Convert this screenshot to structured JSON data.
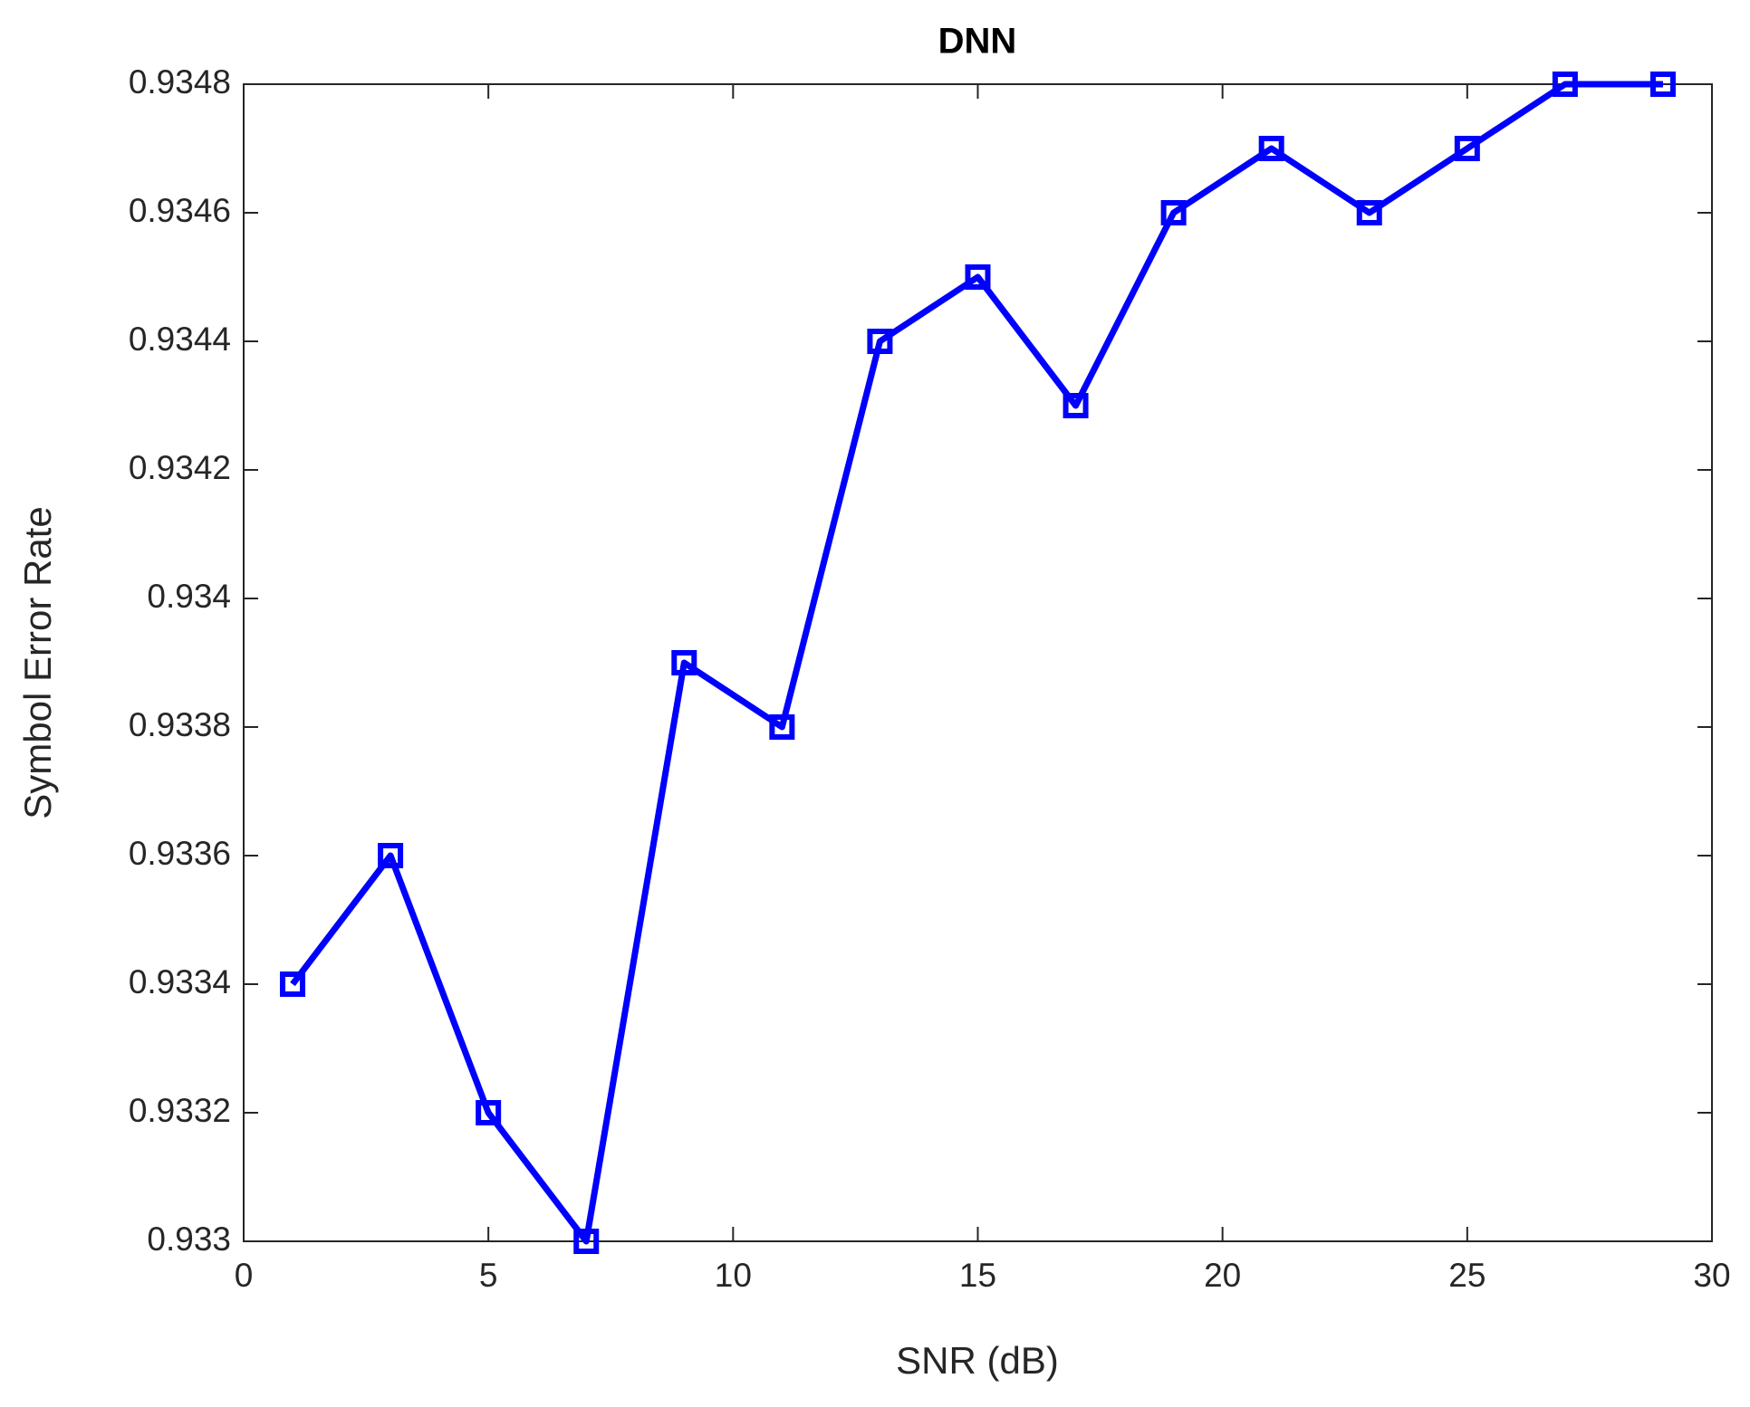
{
  "chart_data": {
    "type": "line",
    "title": "DNN",
    "x_label": "SNR (dB)",
    "y_label": "Symbol Error Rate",
    "x": [
      1,
      3,
      5,
      7,
      9,
      11,
      13,
      15,
      17,
      19,
      21,
      23,
      25,
      27,
      29
    ],
    "series": [
      {
        "name": "DNN",
        "color": "#0000ff",
        "values": [
          0.9334,
          0.9336,
          0.9332,
          0.933,
          0.9339,
          0.9338,
          0.9344,
          0.9345,
          0.9343,
          0.9346,
          0.9347,
          0.9346,
          0.9347,
          0.9348,
          0.9348
        ]
      }
    ],
    "xlim": [
      0,
      30
    ],
    "xticks": [
      0,
      5,
      10,
      15,
      20,
      25,
      30
    ],
    "ylim": [
      0.933,
      0.9348
    ],
    "yticks": [
      0.933,
      0.9332,
      0.9334,
      0.9336,
      0.9338,
      0.934,
      0.9342,
      0.9344,
      0.9346,
      0.9348
    ],
    "grid": false
  }
}
